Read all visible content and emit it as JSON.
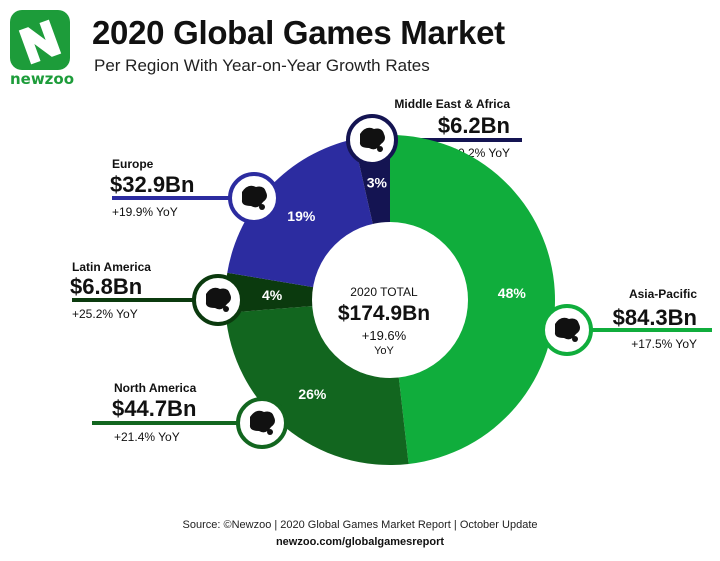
{
  "brand": {
    "name": "newzoo"
  },
  "header": {
    "title": "2020 Global Games Market",
    "subtitle": "Per Region With Year-on-Year Growth Rates"
  },
  "center": {
    "label": "2020 TOTAL",
    "value": "$174.9Bn",
    "growth": "+19.6%",
    "unit": "YoY"
  },
  "colors": {
    "asia_pacific": "#10ad3c",
    "north_america": "#12661f",
    "latin_america": "#0b3a0e",
    "europe": "#2c2ca0",
    "mea": "#141452"
  },
  "chart_data": {
    "type": "pie",
    "title": "2020 Global Games Market",
    "subtitle": "Per Region With Year-on-Year Growth Rates",
    "total": 174.9,
    "total_growth_pct": 19.6,
    "slices": [
      {
        "name": "Asia-Pacific",
        "value": 84.3,
        "value_label": "$84.3Bn",
        "share_pct": 48,
        "share_label": "48%",
        "growth_pct": 17.5,
        "growth_label": "+17.5% YoY",
        "color": "#10ad3c"
      },
      {
        "name": "North America",
        "value": 44.7,
        "value_label": "$44.7Bn",
        "share_pct": 26,
        "share_label": "26%",
        "growth_pct": 21.4,
        "growth_label": "+21.4% YoY",
        "color": "#12661f"
      },
      {
        "name": "Latin America",
        "value": 6.8,
        "value_label": "$6.8Bn",
        "share_pct": 4,
        "share_label": "4%",
        "growth_pct": 25.2,
        "growth_label": "+25.2% YoY",
        "color": "#0b3a0e"
      },
      {
        "name": "Europe",
        "value": 32.9,
        "value_label": "$32.9Bn",
        "share_pct": 19,
        "share_label": "19%",
        "growth_pct": 19.9,
        "growth_label": "+19.9% YoY",
        "color": "#2c2ca0"
      },
      {
        "name": "Middle East & Africa",
        "value": 6.2,
        "value_label": "$6.2Bn",
        "share_pct": 3,
        "share_label": "3%",
        "growth_pct": 30.2,
        "growth_label": "+30.2% YoY",
        "color": "#141452"
      }
    ]
  },
  "footer": {
    "source": "Source: ©Newzoo | 2020 Global Games Market Report | October Update",
    "url": "newzoo.com/globalgamesreport"
  }
}
